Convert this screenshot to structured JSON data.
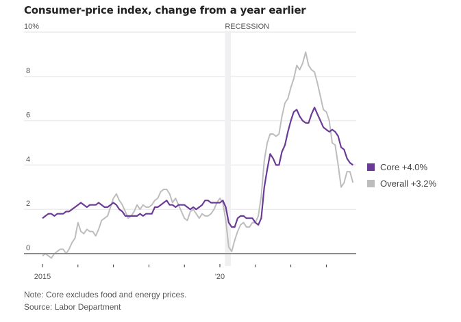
{
  "chart_data": {
    "type": "line",
    "title": "Consumer-price index, change from a year earlier",
    "xlabel": "",
    "ylabel": "",
    "ylim": [
      0,
      10
    ],
    "y_ticks": [
      {
        "value": 0,
        "label": "0"
      },
      {
        "value": 2,
        "label": "2"
      },
      {
        "value": 4,
        "label": "4"
      },
      {
        "value": 6,
        "label": "6"
      },
      {
        "value": 8,
        "label": "8"
      },
      {
        "value": 10,
        "label": "10%"
      }
    ],
    "x_start": "2015-01",
    "x_frequency": "monthly",
    "x_range_years": [
      2015,
      2023.75
    ],
    "x_ticks": [
      {
        "year": 2015,
        "label": "2015"
      },
      {
        "year": 2016,
        "label": ""
      },
      {
        "year": 2017,
        "label": ""
      },
      {
        "year": 2018,
        "label": ""
      },
      {
        "year": 2019,
        "label": ""
      },
      {
        "year": 2020,
        "label": "'20"
      },
      {
        "year": 2021,
        "label": ""
      },
      {
        "year": 2022,
        "label": ""
      },
      {
        "year": 2023,
        "label": ""
      }
    ],
    "grid": true,
    "annotations": [
      {
        "type": "shaded-band",
        "label": "RECESSION",
        "from": "2020-02",
        "to": "2020-04"
      }
    ],
    "legend_position": "right",
    "series": [
      {
        "name": "Core",
        "legend_label": "Core +4.0%",
        "color": "#6b3a96",
        "values": [
          1.6,
          1.7,
          1.8,
          1.8,
          1.7,
          1.8,
          1.8,
          1.8,
          1.9,
          1.9,
          2.0,
          2.1,
          2.2,
          2.3,
          2.2,
          2.1,
          2.2,
          2.2,
          2.2,
          2.3,
          2.2,
          2.1,
          2.1,
          2.2,
          2.3,
          2.2,
          2.0,
          1.9,
          1.7,
          1.7,
          1.7,
          1.7,
          1.7,
          1.8,
          1.7,
          1.8,
          1.8,
          1.8,
          2.1,
          2.1,
          2.2,
          2.3,
          2.4,
          2.2,
          2.2,
          2.1,
          2.2,
          2.2,
          2.2,
          2.1,
          2.0,
          2.1,
          2.0,
          2.1,
          2.2,
          2.4,
          2.4,
          2.3,
          2.3,
          2.3,
          2.3,
          2.4,
          2.1,
          1.4,
          1.2,
          1.2,
          1.6,
          1.7,
          1.7,
          1.6,
          1.6,
          1.6,
          1.4,
          1.3,
          1.6,
          3.0,
          3.8,
          4.5,
          4.3,
          4.0,
          4.0,
          4.6,
          4.9,
          5.5,
          6.0,
          6.4,
          6.5,
          6.2,
          6.0,
          5.9,
          5.9,
          6.3,
          6.6,
          6.3,
          6.0,
          5.7,
          5.6,
          5.5,
          5.6,
          5.5,
          5.3,
          4.8,
          4.7,
          4.3,
          4.1,
          4.0
        ]
      },
      {
        "name": "Overall",
        "legend_label": "Overall +3.2%",
        "color": "#bdbdbd",
        "values": [
          -0.1,
          0.0,
          -0.1,
          -0.2,
          0.0,
          0.1,
          0.2,
          0.2,
          0.0,
          0.2,
          0.5,
          0.7,
          1.4,
          1.0,
          0.9,
          1.1,
          1.0,
          1.0,
          0.8,
          1.1,
          1.5,
          1.6,
          1.7,
          2.1,
          2.5,
          2.7,
          2.4,
          2.2,
          1.9,
          1.6,
          1.7,
          1.9,
          2.2,
          2.0,
          2.2,
          2.1,
          2.1,
          2.2,
          2.4,
          2.5,
          2.8,
          2.9,
          2.9,
          2.7,
          2.3,
          2.5,
          2.2,
          1.9,
          1.6,
          1.5,
          1.9,
          2.0,
          1.8,
          1.6,
          1.8,
          1.7,
          1.7,
          1.8,
          2.0,
          2.3,
          2.5,
          2.3,
          1.5,
          0.3,
          0.1,
          0.6,
          1.0,
          1.3,
          1.4,
          1.2,
          1.2,
          1.4,
          1.4,
          1.7,
          2.6,
          4.2,
          5.0,
          5.4,
          5.4,
          5.3,
          5.4,
          6.2,
          6.8,
          7.0,
          7.5,
          7.9,
          8.5,
          8.3,
          8.6,
          9.1,
          8.5,
          8.3,
          8.2,
          7.7,
          7.1,
          6.5,
          6.4,
          6.0,
          5.0,
          4.9,
          4.0,
          3.0,
          3.2,
          3.7,
          3.7,
          3.2
        ]
      }
    ]
  },
  "legend": {
    "items": [
      {
        "label": "Core +4.0%",
        "color": "#6b3a96"
      },
      {
        "label": "Overall +3.2%",
        "color": "#bdbdbd"
      }
    ]
  },
  "footer": {
    "note": "Note: Core excludes food and energy prices.",
    "source": "Source: Labor Department"
  }
}
